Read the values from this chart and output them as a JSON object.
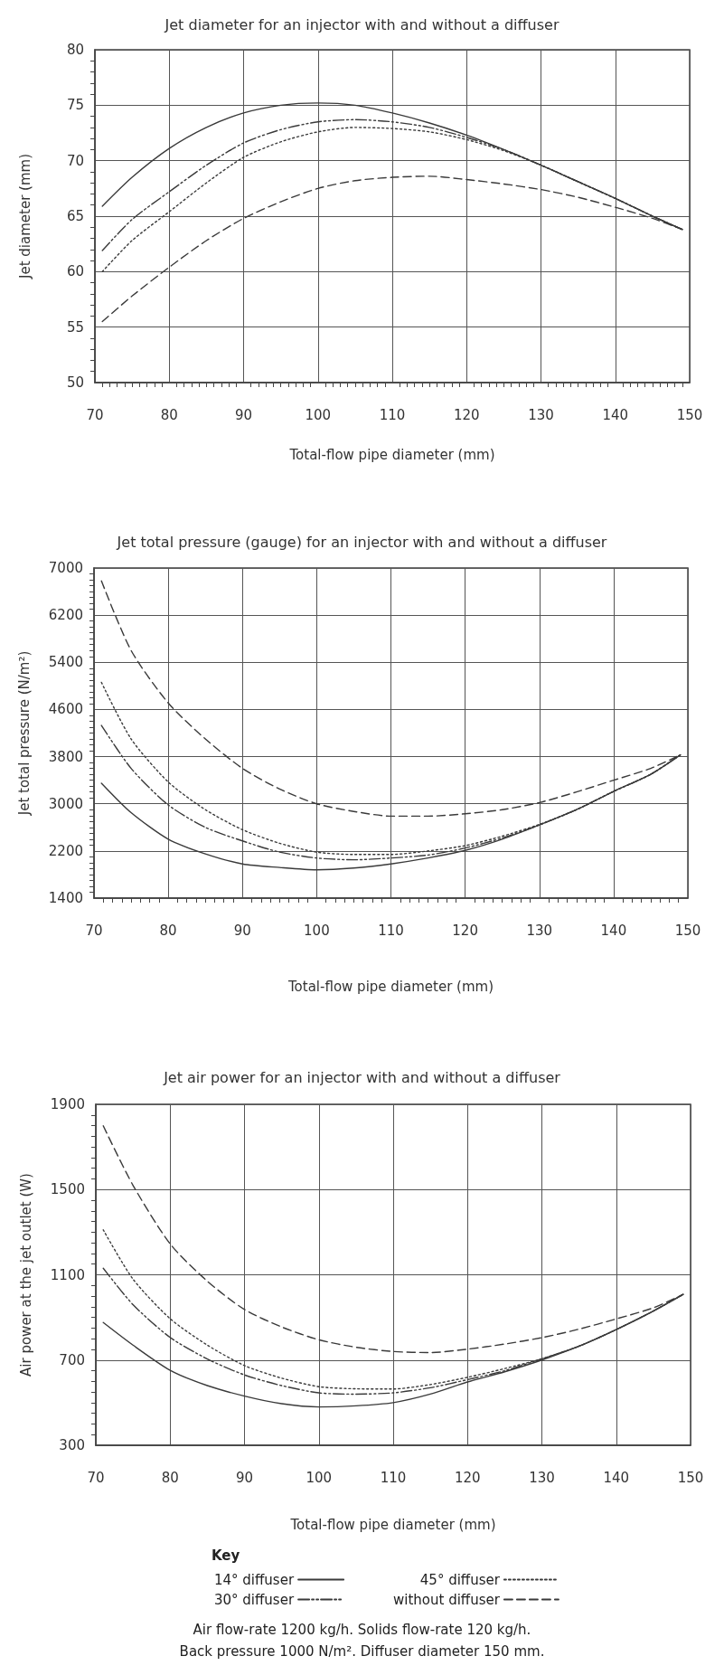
{
  "chart_data": [
    {
      "type": "line",
      "title": "Jet diameter for an injector with and without a diffuser",
      "xlabel": "Total-flow pipe diameter (mm)",
      "ylabel": "Jet diameter (mm)",
      "x": [
        71,
        75,
        80,
        85,
        90,
        95,
        100,
        105,
        110,
        115,
        120,
        125,
        130,
        135,
        140,
        145,
        149
      ],
      "series": [
        {
          "color": "#3a3a3a",
          "line_style": "solid",
          "values": [
            65.9,
            68.5,
            71.1,
            73.0,
            74.3,
            75.0,
            75.2,
            75.0,
            74.3,
            73.4,
            72.3,
            71.0,
            69.6,
            68.1,
            66.6,
            65.0,
            63.8
          ]
        },
        {
          "color": "#3a3a3a",
          "line_style": "dashdot",
          "values": [
            61.9,
            64.7,
            67.2,
            69.6,
            71.6,
            72.8,
            73.5,
            73.7,
            73.5,
            73.0,
            72.1,
            71.0,
            69.6,
            68.1,
            66.6,
            65.0,
            63.8
          ]
        },
        {
          "color": "#3a3a3a",
          "line_style": "dotted",
          "values": [
            60.0,
            62.8,
            65.4,
            68.0,
            70.3,
            71.7,
            72.6,
            73.0,
            72.9,
            72.6,
            71.9,
            70.9,
            69.6,
            68.1,
            66.6,
            65.0,
            63.8
          ]
        },
        {
          "color": "#3a3a3a",
          "line_style": "dashed",
          "values": [
            55.5,
            57.8,
            60.4,
            62.8,
            64.8,
            66.3,
            67.5,
            68.2,
            68.5,
            68.6,
            68.3,
            67.9,
            67.4,
            66.7,
            65.8,
            64.8,
            63.8
          ]
        }
      ],
      "xlim": [
        70,
        150
      ],
      "xticks": [
        70,
        80,
        90,
        100,
        110,
        120,
        130,
        140,
        150
      ],
      "ylim": [
        50,
        80
      ],
      "yticks": [
        50,
        55,
        60,
        65,
        70,
        75,
        80
      ],
      "grid": true,
      "legend": false,
      "marker": "none"
    },
    {
      "type": "line",
      "title": "Jet total pressure (gauge) for an injector with and without a diffuser",
      "xlabel": "Total-flow pipe diameter (mm)",
      "ylabel": "Jet total pressure (N/m²)",
      "x": [
        71,
        75,
        80,
        85,
        90,
        95,
        100,
        105,
        110,
        115,
        120,
        125,
        130,
        135,
        140,
        145,
        149
      ],
      "series": [
        {
          "color": "#3a3a3a",
          "line_style": "solid",
          "values": [
            3350,
            2850,
            2400,
            2150,
            1980,
            1920,
            1880,
            1910,
            1980,
            2080,
            2210,
            2400,
            2640,
            2900,
            3210,
            3500,
            3830
          ]
        },
        {
          "color": "#3a3a3a",
          "line_style": "dashdot",
          "values": [
            4330,
            3600,
            2980,
            2600,
            2370,
            2180,
            2080,
            2050,
            2080,
            2130,
            2250,
            2420,
            2640,
            2900,
            3210,
            3500,
            3830
          ]
        },
        {
          "color": "#3a3a3a",
          "line_style": "dotted",
          "values": [
            5060,
            4100,
            3370,
            2900,
            2560,
            2330,
            2180,
            2140,
            2140,
            2200,
            2290,
            2450,
            2650,
            2900,
            3210,
            3500,
            3830
          ]
        },
        {
          "color": "#3a3a3a",
          "line_style": "dashed",
          "values": [
            6780,
            5600,
            4710,
            4100,
            3600,
            3250,
            3000,
            2870,
            2790,
            2790,
            2830,
            2900,
            3020,
            3200,
            3400,
            3600,
            3830
          ]
        }
      ],
      "xlim": [
        70,
        150
      ],
      "xticks": [
        70,
        80,
        90,
        100,
        110,
        120,
        130,
        140,
        150
      ],
      "ylim": [
        1400,
        7000
      ],
      "yticks": [
        1400,
        2200,
        3000,
        3800,
        4600,
        5400,
        6200,
        7000
      ],
      "grid": true,
      "legend": false,
      "marker": "none"
    },
    {
      "type": "line",
      "title": "Jet air power for an injector with and without a diffuser",
      "xlabel": "Total-flow pipe diameter (mm)",
      "ylabel": "Air power at the jet outlet (W)",
      "legend_title": "Key",
      "annotations": [
        "Air flow-rate 1200 kg/h. Solids flow-rate 120 kg/h.",
        "Back pressure 1000 N/m². Diffuser diameter 150 mm."
      ],
      "x": [
        71,
        75,
        80,
        85,
        90,
        95,
        100,
        105,
        110,
        115,
        120,
        125,
        130,
        135,
        140,
        145,
        149
      ],
      "series": [
        {
          "name": "14° diffuser",
          "color": "#3a3a3a",
          "line_style": "solid",
          "values": [
            876,
            770,
            652,
            580,
            531,
            495,
            480,
            485,
            500,
            540,
            597,
            645,
            700,
            765,
            843,
            930,
            1008
          ]
        },
        {
          "name": "30° diffuser",
          "color": "#3a3a3a",
          "line_style": "dashdot",
          "values": [
            1131,
            960,
            806,
            705,
            630,
            580,
            546,
            540,
            546,
            570,
            608,
            650,
            706,
            765,
            843,
            930,
            1008
          ]
        },
        {
          "name": "45° diffuser",
          "color": "#3a3a3a",
          "line_style": "dotted",
          "values": [
            1311,
            1080,
            894,
            770,
            674,
            615,
            575,
            565,
            564,
            585,
            619,
            660,
            706,
            765,
            843,
            930,
            1008
          ]
        },
        {
          "name": "without diffuser",
          "color": "#3a3a3a",
          "line_style": "dashed",
          "values": [
            1799,
            1520,
            1245,
            1070,
            937,
            855,
            795,
            760,
            740,
            735,
            751,
            775,
            805,
            845,
            893,
            945,
            1008
          ]
        }
      ],
      "xlim": [
        70,
        150
      ],
      "xticks": [
        70,
        80,
        90,
        100,
        110,
        120,
        130,
        140,
        150
      ],
      "ylim": [
        300,
        1900
      ],
      "yticks": [
        300,
        700,
        1100,
        1500,
        1900
      ],
      "grid": true,
      "legend": "bottom",
      "marker": "none"
    }
  ]
}
